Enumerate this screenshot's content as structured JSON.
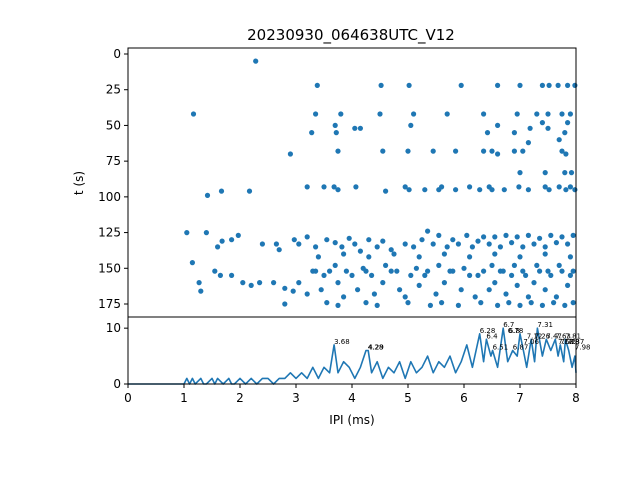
{
  "chart_data": [
    {
      "type": "scatter",
      "title": "20230930_064638UTC_V12",
      "xlabel": "",
      "ylabel": "t (s)",
      "xlim": [
        0,
        8
      ],
      "ylim": [
        0,
        178
      ],
      "y_inverted": true,
      "yticks": [
        0,
        25,
        50,
        75,
        100,
        125,
        150,
        175
      ],
      "color": "#1f77b4",
      "points": [
        [
          2.28,
          5
        ],
        [
          1.17,
          42
        ],
        [
          3.35,
          42
        ],
        [
          3.8,
          42
        ],
        [
          4.5,
          42
        ],
        [
          5.1,
          42
        ],
        [
          5.7,
          42
        ],
        [
          6.35,
          42
        ],
        [
          6.95,
          42
        ],
        [
          7.3,
          42
        ],
        [
          7.5,
          42
        ],
        [
          7.75,
          42
        ],
        [
          7.9,
          42
        ],
        [
          3.38,
          22
        ],
        [
          4.52,
          22
        ],
        [
          5.02,
          22
        ],
        [
          5.95,
          22
        ],
        [
          6.6,
          22
        ],
        [
          7.0,
          22
        ],
        [
          7.4,
          22
        ],
        [
          7.52,
          22
        ],
        [
          7.68,
          22
        ],
        [
          7.85,
          22
        ],
        [
          7.98,
          22
        ],
        [
          3.28,
          55
        ],
        [
          3.7,
          50
        ],
        [
          3.72,
          55
        ],
        [
          4.05,
          52
        ],
        [
          4.15,
          52
        ],
        [
          7.18,
          52
        ],
        [
          7.5,
          52
        ],
        [
          6.6,
          50
        ],
        [
          6.42,
          55
        ],
        [
          5.05,
          50
        ],
        [
          2.9,
          70
        ],
        [
          3.75,
          68
        ],
        [
          4.55,
          68
        ],
        [
          5.0,
          68
        ],
        [
          5.45,
          68
        ],
        [
          5.85,
          68
        ],
        [
          6.35,
          68
        ],
        [
          6.5,
          68
        ],
        [
          6.6,
          70
        ],
        [
          6.9,
          68
        ],
        [
          7.05,
          68
        ],
        [
          7.75,
          68
        ],
        [
          7.82,
          70
        ],
        [
          7.15,
          62
        ],
        [
          7.7,
          60
        ],
        [
          7.8,
          55
        ],
        [
          6.9,
          55
        ],
        [
          7.4,
          48
        ],
        [
          7.85,
          48
        ],
        [
          7.8,
          83
        ],
        [
          7.92,
          83
        ],
        [
          7.0,
          83
        ],
        [
          7.45,
          83
        ],
        [
          1.42,
          99
        ],
        [
          1.67,
          96
        ],
        [
          2.17,
          96
        ],
        [
          3.2,
          93
        ],
        [
          3.5,
          93
        ],
        [
          3.68,
          93
        ],
        [
          3.75,
          95
        ],
        [
          4.07,
          93
        ],
        [
          4.6,
          96
        ],
        [
          4.95,
          93
        ],
        [
          5.02,
          95
        ],
        [
          5.3,
          95
        ],
        [
          5.55,
          95
        ],
        [
          5.6,
          93
        ],
        [
          5.85,
          95
        ],
        [
          6.1,
          93
        ],
        [
          6.28,
          95
        ],
        [
          6.45,
          93
        ],
        [
          6.5,
          95
        ],
        [
          6.72,
          95
        ],
        [
          6.98,
          93
        ],
        [
          7.15,
          95
        ],
        [
          7.45,
          93
        ],
        [
          7.52,
          95
        ],
        [
          7.7,
          93
        ],
        [
          7.82,
          95
        ],
        [
          7.9,
          93
        ],
        [
          7.98,
          95
        ],
        [
          1.05,
          125
        ],
        [
          1.4,
          125
        ],
        [
          1.6,
          135
        ],
        [
          1.68,
          131
        ],
        [
          1.85,
          130
        ],
        [
          1.97,
          127
        ],
        [
          2.4,
          133
        ],
        [
          2.65,
          133
        ],
        [
          2.7,
          137
        ],
        [
          2.97,
          130
        ],
        [
          3.05,
          133
        ],
        [
          3.2,
          128
        ],
        [
          3.35,
          135
        ],
        [
          3.55,
          130
        ],
        [
          3.7,
          132
        ],
        [
          3.82,
          135
        ],
        [
          3.95,
          129
        ],
        [
          4.05,
          133
        ],
        [
          4.15,
          138
        ],
        [
          4.3,
          130
        ],
        [
          4.45,
          135
        ],
        [
          4.55,
          131
        ],
        [
          4.7,
          137
        ],
        [
          4.95,
          133
        ],
        [
          5.1,
          135
        ],
        [
          5.25,
          130
        ],
        [
          5.35,
          124
        ],
        [
          5.45,
          133
        ],
        [
          5.55,
          127
        ],
        [
          5.7,
          135
        ],
        [
          5.8,
          130
        ],
        [
          5.9,
          133
        ],
        [
          6.05,
          127
        ],
        [
          6.15,
          135
        ],
        [
          6.25,
          131
        ],
        [
          6.35,
          128
        ],
        [
          6.45,
          133
        ],
        [
          6.55,
          128
        ],
        [
          6.65,
          135
        ],
        [
          6.75,
          127
        ],
        [
          6.85,
          132
        ],
        [
          6.95,
          128
        ],
        [
          7.05,
          135
        ],
        [
          7.15,
          127
        ],
        [
          7.25,
          133
        ],
        [
          7.35,
          129
        ],
        [
          7.45,
          135
        ],
        [
          7.55,
          127
        ],
        [
          7.65,
          132
        ],
        [
          7.75,
          128
        ],
        [
          7.85,
          133
        ],
        [
          7.95,
          127
        ],
        [
          1.15,
          146
        ],
        [
          1.27,
          160
        ],
        [
          1.3,
          166
        ],
        [
          1.55,
          152
        ],
        [
          1.65,
          155
        ],
        [
          1.85,
          155
        ],
        [
          2.05,
          160
        ],
        [
          2.2,
          162
        ],
        [
          2.35,
          160
        ],
        [
          2.6,
          160
        ],
        [
          2.8,
          164
        ],
        [
          2.95,
          166
        ],
        [
          3.05,
          160
        ],
        [
          3.2,
          168
        ],
        [
          3.35,
          152
        ],
        [
          3.45,
          165
        ],
        [
          3.6,
          152
        ],
        [
          3.75,
          160
        ],
        [
          3.85,
          170
        ],
        [
          4.0,
          155
        ],
        [
          4.1,
          165
        ],
        [
          4.25,
          152
        ],
        [
          4.4,
          168
        ],
        [
          4.55,
          160
        ],
        [
          4.7,
          152
        ],
        [
          4.85,
          165
        ],
        [
          4.95,
          170
        ],
        [
          5.05,
          155
        ],
        [
          5.2,
          162
        ],
        [
          5.35,
          152
        ],
        [
          5.5,
          168
        ],
        [
          5.65,
          160
        ],
        [
          5.8,
          152
        ],
        [
          5.95,
          165
        ],
        [
          6.1,
          155
        ],
        [
          6.2,
          170
        ],
        [
          6.35,
          152
        ],
        [
          6.45,
          165
        ],
        [
          6.55,
          160
        ],
        [
          6.65,
          152
        ],
        [
          6.75,
          168
        ],
        [
          6.85,
          155
        ],
        [
          6.95,
          162
        ],
        [
          7.05,
          152
        ],
        [
          7.15,
          170
        ],
        [
          7.25,
          160
        ],
        [
          7.35,
          152
        ],
        [
          7.45,
          165
        ],
        [
          7.55,
          155
        ],
        [
          7.65,
          170
        ],
        [
          7.75,
          152
        ],
        [
          7.85,
          162
        ],
        [
          7.95,
          152
        ],
        [
          2.8,
          175
        ],
        [
          3.55,
          174
        ],
        [
          3.75,
          176
        ],
        [
          4.25,
          174
        ],
        [
          4.45,
          176
        ],
        [
          5.0,
          174
        ],
        [
          5.4,
          176
        ],
        [
          5.6,
          174
        ],
        [
          5.9,
          176
        ],
        [
          6.3,
          174
        ],
        [
          6.6,
          176
        ],
        [
          6.8,
          174
        ],
        [
          7.0,
          176
        ],
        [
          7.2,
          174
        ],
        [
          7.4,
          176
        ],
        [
          7.6,
          174
        ],
        [
          7.8,
          176
        ],
        [
          7.95,
          174
        ],
        [
          3.3,
          152
        ],
        [
          3.5,
          155
        ],
        [
          3.7,
          148
        ],
        [
          3.9,
          152
        ],
        [
          4.2,
          150
        ],
        [
          4.35,
          155
        ],
        [
          4.6,
          148
        ],
        [
          4.8,
          152
        ],
        [
          5.15,
          150
        ],
        [
          5.3,
          155
        ],
        [
          5.55,
          148
        ],
        [
          5.75,
          152
        ],
        [
          6.0,
          150
        ],
        [
          6.25,
          155
        ],
        [
          6.5,
          148
        ],
        [
          6.7,
          152
        ],
        [
          6.9,
          148
        ],
        [
          7.1,
          155
        ],
        [
          7.3,
          148
        ],
        [
          7.5,
          152
        ],
        [
          7.7,
          148
        ],
        [
          7.9,
          155
        ],
        [
          3.4,
          142
        ],
        [
          3.85,
          140
        ],
        [
          4.3,
          142
        ],
        [
          4.75,
          140
        ],
        [
          5.2,
          142
        ],
        [
          5.65,
          140
        ],
        [
          6.1,
          142
        ],
        [
          6.55,
          140
        ],
        [
          7.0,
          142
        ],
        [
          7.45,
          140
        ],
        [
          7.9,
          142
        ]
      ]
    },
    {
      "type": "line",
      "xlabel": "IPI (ms)",
      "ylabel": "",
      "xlim": [
        0,
        8
      ],
      "ylim": [
        0,
        12
      ],
      "xticks": [
        0,
        1,
        2,
        3,
        4,
        5,
        6,
        7,
        8
      ],
      "yticks": [
        0,
        10
      ],
      "color": "#1f77b4",
      "x": [
        0,
        0.5,
        1.0,
        1.05,
        1.1,
        1.15,
        1.2,
        1.3,
        1.35,
        1.4,
        1.5,
        1.55,
        1.6,
        1.7,
        1.8,
        1.85,
        1.9,
        2.0,
        2.1,
        2.2,
        2.3,
        2.4,
        2.5,
        2.6,
        2.7,
        2.8,
        2.9,
        3.0,
        3.1,
        3.2,
        3.3,
        3.4,
        3.5,
        3.6,
        3.68,
        3.75,
        3.85,
        3.95,
        4.05,
        4.15,
        4.25,
        4.29,
        4.35,
        4.45,
        4.55,
        4.65,
        4.75,
        4.85,
        4.95,
        5.05,
        5.15,
        5.25,
        5.35,
        5.45,
        5.55,
        5.65,
        5.75,
        5.85,
        5.95,
        6.05,
        6.15,
        6.28,
        6.35,
        6.4,
        6.48,
        6.51,
        6.6,
        6.7,
        6.78,
        6.87,
        6.95,
        7.0,
        7.06,
        7.12,
        7.2,
        7.26,
        7.31,
        7.4,
        7.47,
        7.55,
        7.63,
        7.68,
        7.72,
        7.78,
        7.81,
        7.87,
        7.93,
        7.98,
        8.0
      ],
      "y": [
        0,
        0,
        0,
        1,
        0,
        1,
        0,
        1,
        0,
        0,
        1,
        0,
        1,
        0,
        1,
        0,
        0,
        1,
        0,
        1,
        0,
        1,
        1,
        0,
        1,
        1,
        2,
        1,
        2,
        1,
        3,
        1,
        3,
        2,
        7,
        2,
        4,
        3,
        1,
        3,
        6,
        6,
        2,
        4,
        1,
        3,
        2,
        4,
        1,
        4,
        2,
        3,
        5,
        2,
        4,
        3,
        5,
        2,
        4,
        7,
        3,
        9,
        4,
        8,
        5,
        6,
        3,
        10,
        4,
        6,
        5,
        9,
        6,
        3,
        8,
        4,
        10,
        5,
        8,
        6,
        8,
        5,
        7,
        4,
        8,
        6,
        3,
        5,
        2
      ],
      "annotations": [
        {
          "x": 3.68,
          "y": 7,
          "label": "3.68"
        },
        {
          "x": 4.28,
          "y": 6,
          "label": "4.28"
        },
        {
          "x": 4.29,
          "y": 6,
          "label": "4.29"
        },
        {
          "x": 6.28,
          "y": 9,
          "label": "6.28"
        },
        {
          "x": 6.4,
          "y": 8,
          "label": "6.4"
        },
        {
          "x": 6.51,
          "y": 6,
          "label": "6.51"
        },
        {
          "x": 6.7,
          "y": 10,
          "label": "6.7"
        },
        {
          "x": 6.78,
          "y": 9,
          "label": "6.78"
        },
        {
          "x": 6.8,
          "y": 9,
          "label": "6.8"
        },
        {
          "x": 6.87,
          "y": 6,
          "label": "6.87"
        },
        {
          "x": 7.06,
          "y": 7,
          "label": "7.06"
        },
        {
          "x": 7.12,
          "y": 8,
          "label": "7.12"
        },
        {
          "x": 7.26,
          "y": 8,
          "label": "7.26"
        },
        {
          "x": 7.31,
          "y": 10,
          "label": "7.31"
        },
        {
          "x": 7.47,
          "y": 8,
          "label": "7.47"
        },
        {
          "x": 7.63,
          "y": 8,
          "label": "7.63"
        },
        {
          "x": 7.68,
          "y": 7,
          "label": "7.68"
        },
        {
          "x": 7.72,
          "y": 7,
          "label": "7.72"
        },
        {
          "x": 7.78,
          "y": 7,
          "label": "7.78"
        },
        {
          "x": 7.81,
          "y": 8,
          "label": "7.81"
        },
        {
          "x": 7.87,
          "y": 7,
          "label": "7.87"
        },
        {
          "x": 7.98,
          "y": 6,
          "label": "7.98"
        }
      ]
    }
  ]
}
